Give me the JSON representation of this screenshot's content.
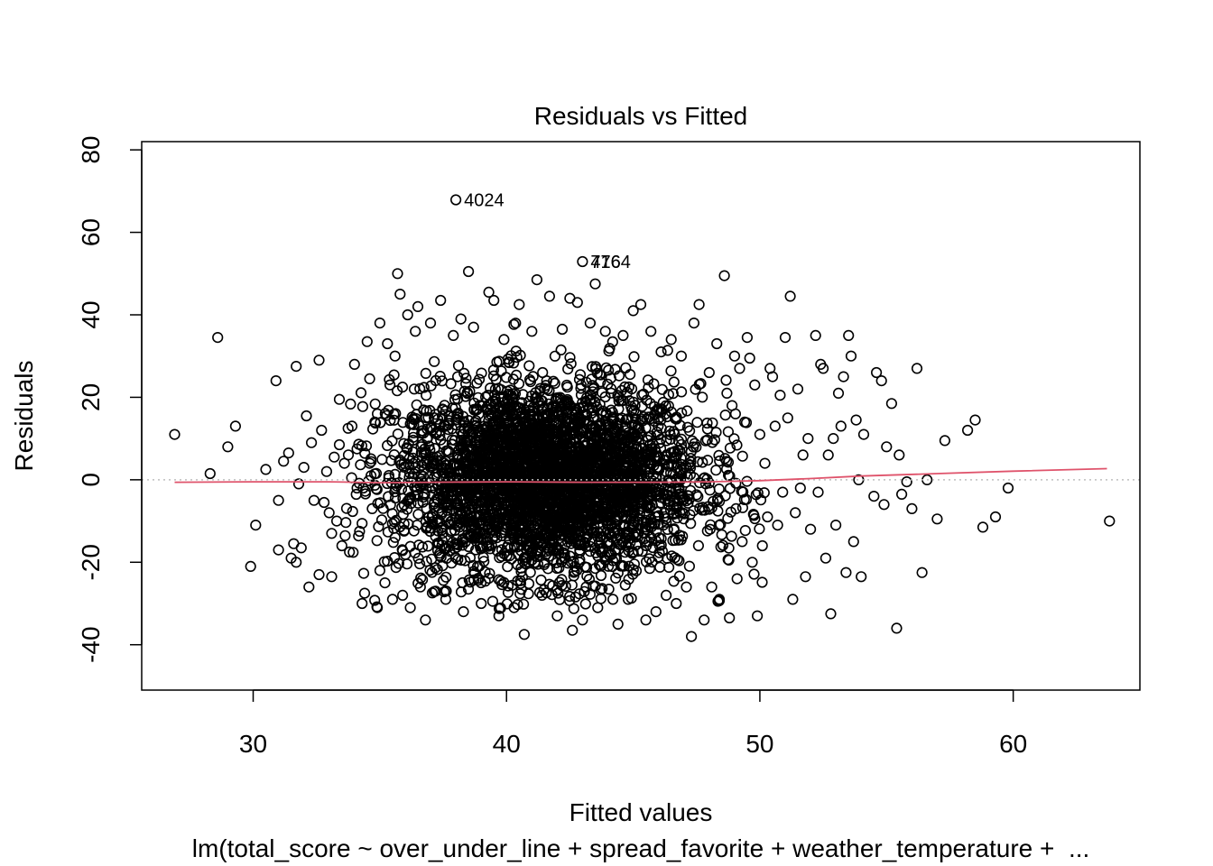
{
  "chart_data": {
    "type": "scatter",
    "title": "Residuals vs Fitted",
    "xlabel": "Fitted values",
    "ylabel": "Residuals",
    "subtitle": "lm(total_score ~ over_under_line + spread_favorite + weather_temperature +  ...",
    "xlim": [
      25.6,
      65.0
    ],
    "ylim": [
      -51.0,
      82.0
    ],
    "xticks": [
      30,
      40,
      50,
      60
    ],
    "yticks": [
      -40,
      -20,
      0,
      20,
      40,
      60,
      80
    ],
    "grid": false,
    "reference_line": {
      "y": 0,
      "style": "dotted",
      "color": "#bebebe"
    },
    "smoother": {
      "color": "#df536b",
      "x": [
        26.9,
        30,
        33,
        35,
        37,
        40,
        43,
        46,
        48,
        50,
        52,
        54,
        57,
        60,
        63.7
      ],
      "y": [
        -0.6,
        -0.5,
        -0.5,
        -0.7,
        -0.6,
        -0.5,
        -0.6,
        -0.6,
        -0.5,
        -0.2,
        0.3,
        0.9,
        1.5,
        2.1,
        2.7
      ]
    },
    "point_style": {
      "shape": "open-circle",
      "color": "#000000"
    },
    "labeled_points": [
      {
        "label": "4024",
        "x": 38.0,
        "y": 67.9
      },
      {
        "label": "776",
        "x": 43.0,
        "y": 52.9
      },
      {
        "label": "4164",
        "x": 43.0,
        "y": 52.9
      }
    ],
    "points": [
      [
        26.9,
        11
      ],
      [
        28.3,
        1.5
      ],
      [
        28.6,
        34.5
      ],
      [
        29.0,
        8
      ],
      [
        29.3,
        13
      ],
      [
        30.1,
        -11
      ],
      [
        29.9,
        -21
      ],
      [
        30.5,
        2.5
      ],
      [
        30.9,
        24
      ],
      [
        31.0,
        -17
      ],
      [
        31.0,
        -5
      ],
      [
        31.2,
        4.5
      ],
      [
        31.4,
        6.5
      ],
      [
        31.5,
        -19
      ],
      [
        31.6,
        -15.5
      ],
      [
        31.7,
        -20
      ],
      [
        31.7,
        27.5
      ],
      [
        31.8,
        -1
      ],
      [
        31.9,
        -16.5
      ],
      [
        32.0,
        3
      ],
      [
        32.1,
        15.5
      ],
      [
        32.2,
        -26
      ],
      [
        32.3,
        9
      ],
      [
        32.4,
        -5
      ],
      [
        32.6,
        29
      ],
      [
        32.6,
        -23
      ],
      [
        32.7,
        12
      ],
      [
        32.8,
        -5.5
      ],
      [
        32.9,
        2
      ],
      [
        33.0,
        -8
      ],
      [
        33.1,
        -13
      ],
      [
        33.1,
        -23.5
      ],
      [
        33.2,
        5.5
      ],
      [
        33.3,
        -10
      ],
      [
        33.4,
        19.5
      ],
      [
        33.4,
        8.5
      ],
      [
        33.5,
        -16
      ],
      [
        33.6,
        4
      ],
      [
        33.8,
        -17.5
      ],
      [
        33.9,
        13
      ],
      [
        34.0,
        28
      ],
      [
        34.1,
        -2
      ],
      [
        34.1,
        7.5
      ],
      [
        34.2,
        -12.5
      ],
      [
        34.3,
        -30
      ],
      [
        34.4,
        -27.5
      ],
      [
        34.5,
        33.5
      ],
      [
        34.6,
        24.5
      ],
      [
        34.6,
        4
      ],
      [
        34.7,
        -7
      ],
      [
        34.8,
        14
      ],
      [
        34.9,
        -31
      ],
      [
        34.9,
        16
      ],
      [
        35.0,
        -22
      ],
      [
        35.0,
        38
      ],
      [
        35.2,
        -25
      ],
      [
        35.3,
        33
      ],
      [
        35.4,
        23
      ],
      [
        35.5,
        -29
      ],
      [
        35.6,
        30
      ],
      [
        35.7,
        50
      ],
      [
        35.8,
        45
      ],
      [
        35.9,
        -28
      ],
      [
        36.1,
        40
      ],
      [
        36.2,
        -31
      ],
      [
        36.4,
        36
      ],
      [
        36.5,
        42
      ],
      [
        36.6,
        -26
      ],
      [
        36.8,
        -34
      ],
      [
        37.0,
        38
      ],
      [
        37.2,
        -27
      ],
      [
        37.4,
        43.5
      ],
      [
        37.6,
        -29
      ],
      [
        37.9,
        35
      ],
      [
        38.2,
        39
      ],
      [
        38.3,
        -32
      ],
      [
        38.5,
        50.5
      ],
      [
        38.7,
        37
      ],
      [
        39.0,
        -30
      ],
      [
        39.3,
        45.5
      ],
      [
        39.5,
        43.5
      ],
      [
        39.7,
        -33
      ],
      [
        39.9,
        34
      ],
      [
        40.3,
        -31
      ],
      [
        40.5,
        42.5
      ],
      [
        40.7,
        -37.5
      ],
      [
        41.0,
        36
      ],
      [
        41.2,
        48.5
      ],
      [
        41.4,
        -28
      ],
      [
        41.7,
        44.5
      ],
      [
        42.0,
        -33
      ],
      [
        42.2,
        36.5
      ],
      [
        42.5,
        44
      ],
      [
        42.6,
        -36.5
      ],
      [
        42.8,
        43
      ],
      [
        43.0,
        -34
      ],
      [
        43.3,
        38
      ],
      [
        43.5,
        47.5
      ],
      [
        43.6,
        -31
      ],
      [
        43.9,
        36
      ],
      [
        44.2,
        -29
      ],
      [
        44.4,
        -35
      ],
      [
        44.6,
        35
      ],
      [
        44.8,
        -29
      ],
      [
        45.0,
        41
      ],
      [
        45.3,
        42.5
      ],
      [
        45.5,
        -34
      ],
      [
        45.7,
        36
      ],
      [
        45.9,
        -32
      ],
      [
        46.1,
        31
      ],
      [
        46.3,
        -28
      ],
      [
        46.5,
        34
      ],
      [
        46.7,
        -30
      ],
      [
        46.9,
        30
      ],
      [
        47.1,
        -26
      ],
      [
        47.3,
        -38
      ],
      [
        47.4,
        38
      ],
      [
        47.6,
        42.5
      ],
      [
        47.8,
        -34
      ],
      [
        48.0,
        26
      ],
      [
        48.1,
        -26
      ],
      [
        48.3,
        33
      ],
      [
        48.4,
        -29
      ],
      [
        48.6,
        49.5
      ],
      [
        48.7,
        21
      ],
      [
        48.8,
        -33.5
      ],
      [
        48.9,
        18
      ],
      [
        49.0,
        30
      ],
      [
        49.1,
        -24
      ],
      [
        49.2,
        27
      ],
      [
        49.3,
        -15
      ],
      [
        49.4,
        14
      ],
      [
        49.5,
        34.5
      ],
      [
        49.6,
        29.5
      ],
      [
        49.7,
        -20
      ],
      [
        49.8,
        23
      ],
      [
        49.9,
        -33
      ],
      [
        50.0,
        11
      ],
      [
        50.1,
        -16
      ],
      [
        50.2,
        4
      ],
      [
        50.3,
        -9
      ],
      [
        50.4,
        27
      ],
      [
        50.5,
        25
      ],
      [
        50.6,
        13
      ],
      [
        50.7,
        -11
      ],
      [
        50.8,
        20.5
      ],
      [
        50.9,
        -3
      ],
      [
        51.0,
        34.5
      ],
      [
        51.1,
        15
      ],
      [
        51.2,
        44.5
      ],
      [
        51.3,
        -29
      ],
      [
        51.4,
        -8
      ],
      [
        51.5,
        22
      ],
      [
        51.6,
        -2
      ],
      [
        51.7,
        6
      ],
      [
        51.8,
        -23.5
      ],
      [
        51.9,
        10
      ],
      [
        52.0,
        -12
      ],
      [
        52.2,
        35
      ],
      [
        52.3,
        -3
      ],
      [
        52.4,
        28
      ],
      [
        52.5,
        27
      ],
      [
        52.6,
        -19
      ],
      [
        52.7,
        6
      ],
      [
        52.8,
        -32.5
      ],
      [
        52.9,
        10
      ],
      [
        53.0,
        -11
      ],
      [
        53.1,
        21
      ],
      [
        53.2,
        13
      ],
      [
        53.3,
        25
      ],
      [
        53.4,
        -22.5
      ],
      [
        53.5,
        35
      ],
      [
        53.6,
        30
      ],
      [
        53.7,
        -15
      ],
      [
        53.8,
        14.5
      ],
      [
        53.9,
        0
      ],
      [
        54.0,
        -23.5
      ],
      [
        54.1,
        11
      ],
      [
        54.5,
        -4
      ],
      [
        54.6,
        26
      ],
      [
        54.8,
        24
      ],
      [
        54.9,
        -6
      ],
      [
        55.0,
        8
      ],
      [
        55.2,
        18.5
      ],
      [
        55.4,
        -36
      ],
      [
        55.5,
        6
      ],
      [
        55.6,
        -3.5
      ],
      [
        55.8,
        -0.5
      ],
      [
        56.0,
        -7
      ],
      [
        56.2,
        27
      ],
      [
        56.4,
        -22.5
      ],
      [
        56.6,
        0
      ],
      [
        57.0,
        -9.5
      ],
      [
        57.3,
        9.5
      ],
      [
        58.2,
        12
      ],
      [
        58.5,
        14.5
      ],
      [
        58.8,
        -11.5
      ],
      [
        59.3,
        -9
      ],
      [
        59.8,
        -2
      ],
      [
        63.8,
        -10
      ]
    ]
  }
}
